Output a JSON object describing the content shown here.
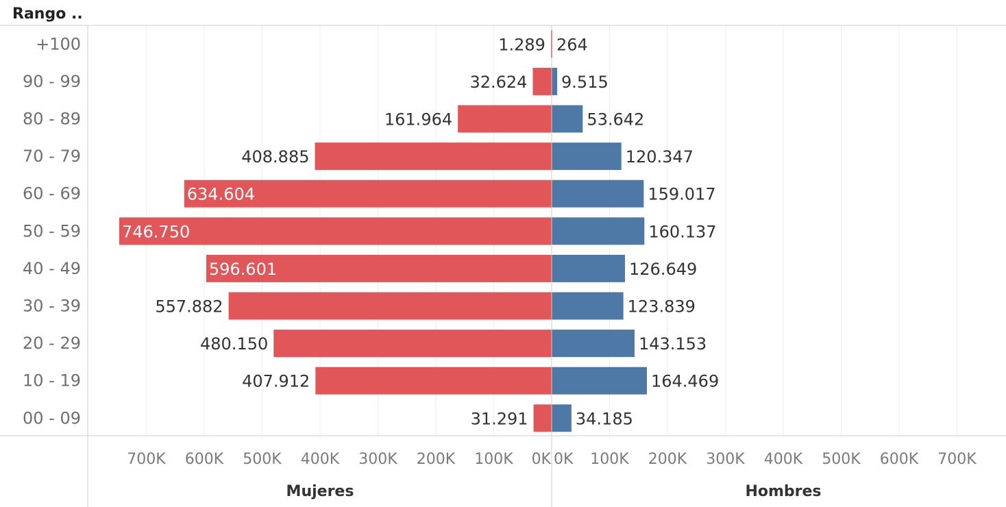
{
  "header": {
    "row_field_label": "Rango .."
  },
  "colors": {
    "mujeres": "#e15759",
    "hombres": "#4e79a7",
    "grid": "#eeeeee",
    "axis": "#cccccc"
  },
  "chart_data": {
    "type": "bar",
    "orientation": "horizontal-butterfly",
    "categories": [
      "+100",
      "90 - 99",
      "80 - 89",
      "70 - 79",
      "60 - 69",
      "50 - 59",
      "40 - 49",
      "30 - 39",
      "20 - 29",
      "10 - 19",
      "00 - 09"
    ],
    "series": [
      {
        "name": "Mujeres",
        "values": [
          1289,
          32624,
          161964,
          408885,
          634604,
          746750,
          596601,
          557882,
          480150,
          407912,
          31291
        ],
        "labels": [
          "1.289",
          "32.624",
          "161.964",
          "408.885",
          "634.604",
          "746.750",
          "596.601",
          "557.882",
          "480.150",
          "407.912",
          "31.291"
        ]
      },
      {
        "name": "Hombres",
        "values": [
          264,
          9515,
          53642,
          120347,
          159017,
          160137,
          126649,
          123839,
          143153,
          164469,
          34185
        ],
        "labels": [
          "264",
          "9.515",
          "53.642",
          "120.347",
          "159.017",
          "160.137",
          "126.649",
          "123.839",
          "143.153",
          "164.469",
          "34.185"
        ]
      }
    ],
    "xlim": [
      0,
      800000
    ],
    "ticks": [
      0,
      100000,
      200000,
      300000,
      400000,
      500000,
      600000,
      700000
    ],
    "tick_labels": [
      "0K",
      "100K",
      "200K",
      "300K",
      "400K",
      "500K",
      "600K",
      "700K"
    ],
    "grid": true,
    "legend": "none"
  }
}
